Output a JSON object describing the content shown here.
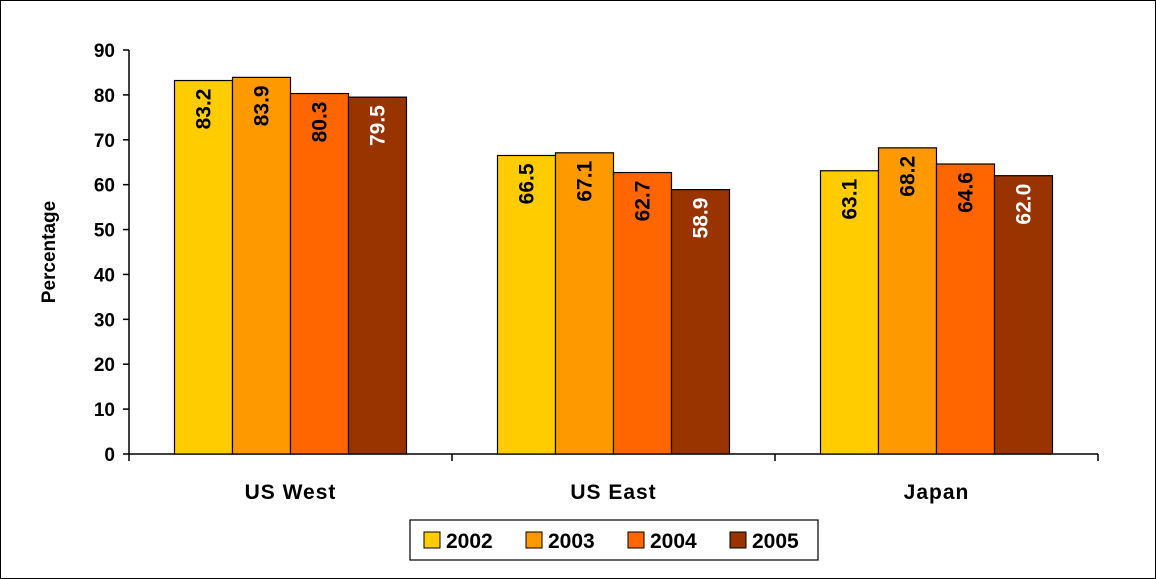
{
  "chart_data": {
    "type": "bar",
    "title": "",
    "xlabel": "",
    "ylabel": "Percentage",
    "ylim": [
      0,
      90
    ],
    "yticks": [
      0,
      10,
      20,
      30,
      40,
      50,
      60,
      70,
      80,
      90
    ],
    "categories": [
      "US West",
      "US East",
      "Japan"
    ],
    "series": [
      {
        "name": "2002",
        "color": "#FFCC00",
        "label_color": "#000000",
        "values": [
          83.2,
          66.5,
          63.1
        ]
      },
      {
        "name": "2003",
        "color": "#FF9900",
        "label_color": "#000000",
        "values": [
          83.9,
          67.1,
          68.2
        ]
      },
      {
        "name": "2004",
        "color": "#FF6600",
        "label_color": "#000000",
        "values": [
          80.3,
          62.7,
          64.6
        ]
      },
      {
        "name": "2005",
        "color": "#993300",
        "label_color": "#FFFFFF",
        "values": [
          79.5,
          58.9,
          62.0
        ]
      }
    ],
    "legend_position": "bottom",
    "grid": false
  }
}
